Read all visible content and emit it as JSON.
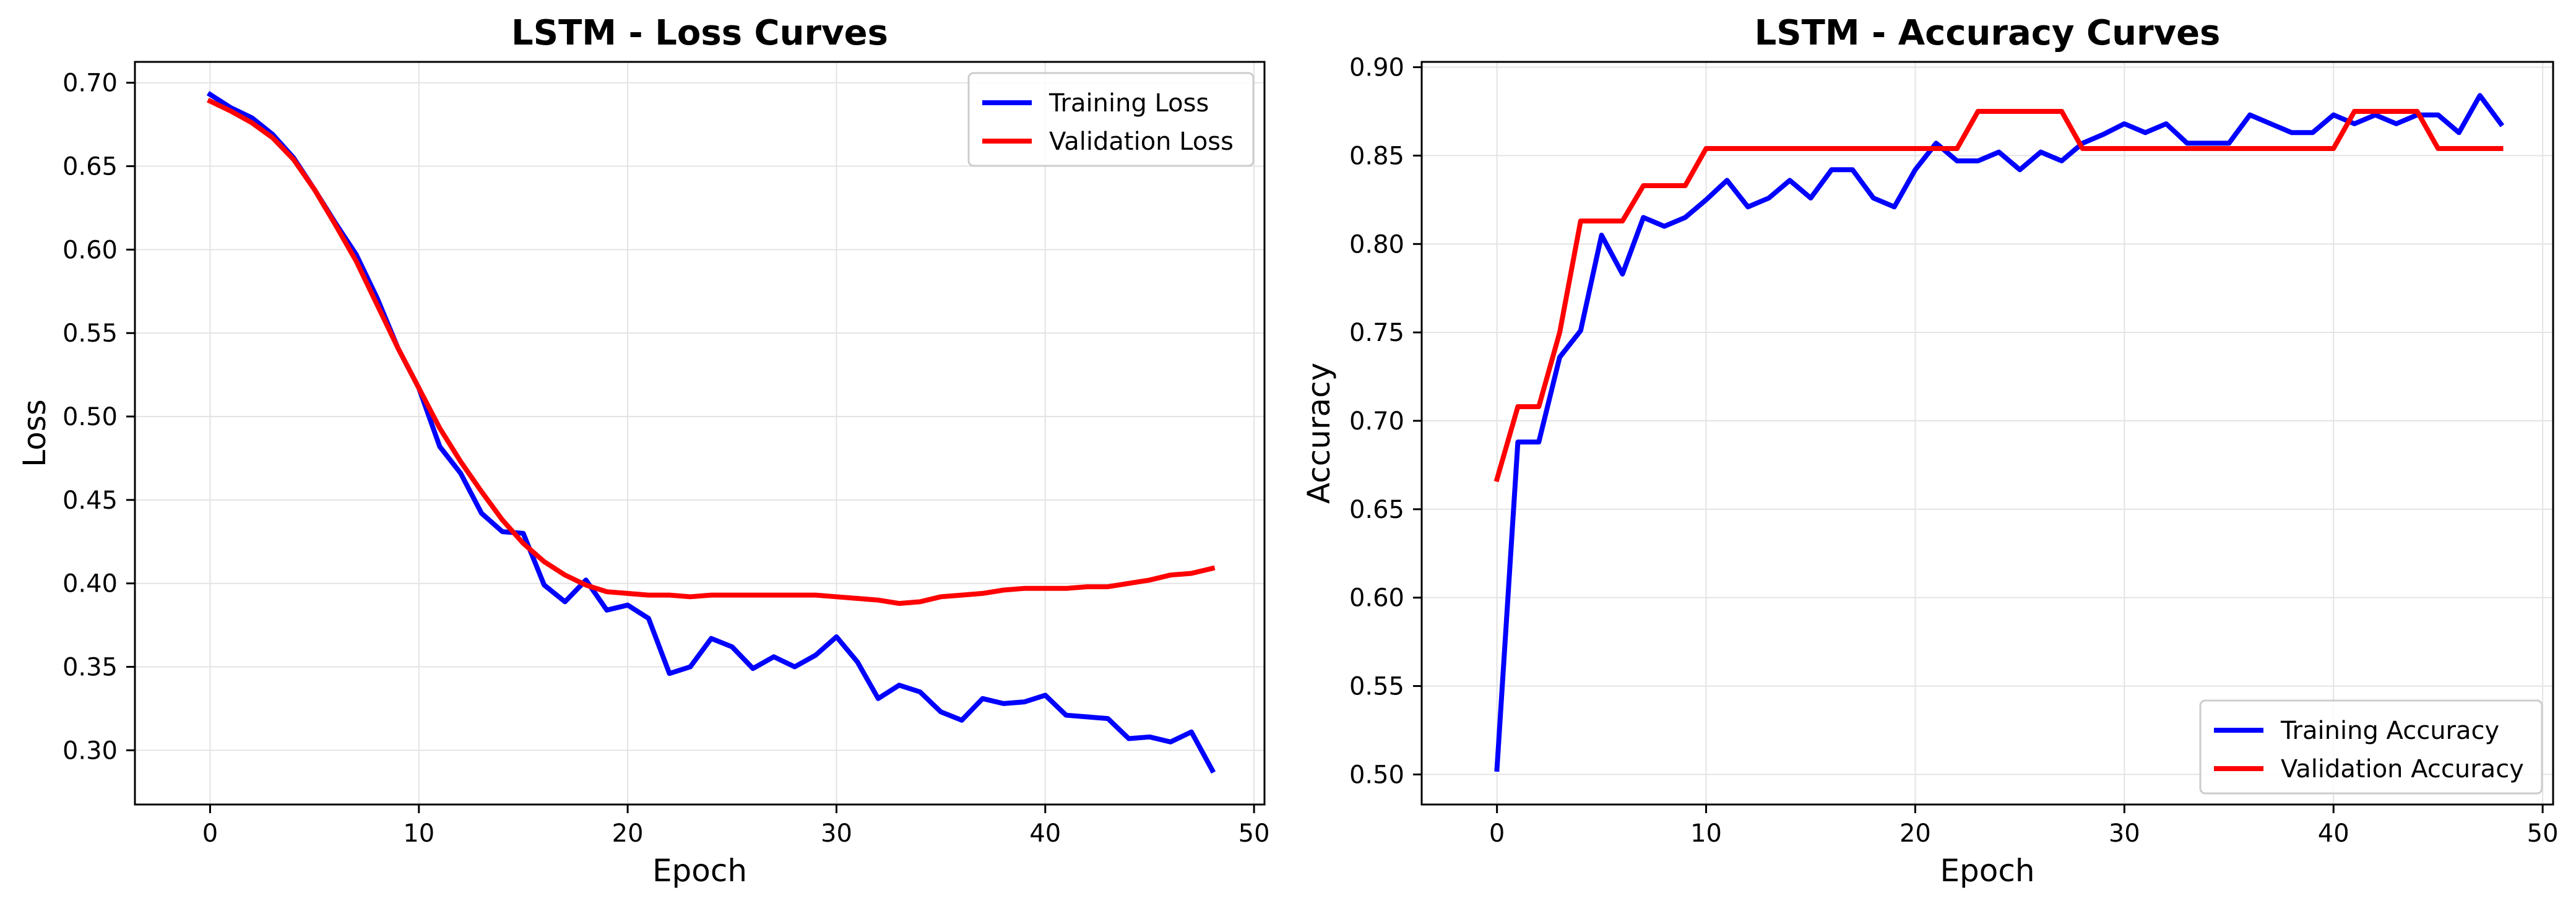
{
  "chart_data": [
    {
      "type": "line",
      "title": "LSTM - Loss Curves",
      "xlabel": "Epoch",
      "ylabel": "Loss",
      "xlim": [
        -3.6,
        50.5
      ],
      "ylim": [
        0.2675,
        0.7125
      ],
      "xticks": [
        0,
        10,
        20,
        30,
        40,
        50
      ],
      "xtick_labels": [
        "0",
        "10",
        "20",
        "30",
        "40",
        "50"
      ],
      "yticks": [
        0.3,
        0.35,
        0.4,
        0.45,
        0.5,
        0.55,
        0.6,
        0.65,
        0.7
      ],
      "ytick_labels": [
        "0.30",
        "0.35",
        "0.40",
        "0.45",
        "0.50",
        "0.55",
        "0.60",
        "0.65",
        "0.70"
      ],
      "grid": true,
      "legend_position": "upper right",
      "x": [
        0,
        1,
        2,
        3,
        4,
        5,
        6,
        7,
        8,
        9,
        10,
        11,
        12,
        13,
        14,
        15,
        16,
        17,
        18,
        19,
        20,
        21,
        22,
        23,
        24,
        25,
        26,
        27,
        28,
        29,
        30,
        31,
        32,
        33,
        34,
        35,
        36,
        37,
        38,
        39,
        40,
        41,
        42,
        43,
        44,
        45,
        46,
        47,
        48
      ],
      "series": [
        {
          "name": "Training Loss",
          "color": "#0000ff",
          "values": [
            0.693,
            0.685,
            0.679,
            0.669,
            0.655,
            0.636,
            0.616,
            0.597,
            0.571,
            0.541,
            0.517,
            0.482,
            0.466,
            0.442,
            0.431,
            0.43,
            0.399,
            0.389,
            0.402,
            0.384,
            0.387,
            0.379,
            0.346,
            0.35,
            0.367,
            0.362,
            0.349,
            0.356,
            0.35,
            0.357,
            0.368,
            0.353,
            0.331,
            0.339,
            0.335,
            0.323,
            0.318,
            0.331,
            0.328,
            0.329,
            0.333,
            0.321,
            0.32,
            0.319,
            0.307,
            0.308,
            0.305,
            0.311,
            0.288
          ]
        },
        {
          "name": "Validation Loss",
          "color": "#ff0000",
          "values": [
            0.689,
            0.683,
            0.676,
            0.667,
            0.654,
            0.636,
            0.615,
            0.593,
            0.567,
            0.541,
            0.517,
            0.493,
            0.473,
            0.455,
            0.438,
            0.424,
            0.413,
            0.405,
            0.399,
            0.395,
            0.394,
            0.393,
            0.393,
            0.392,
            0.393,
            0.393,
            0.393,
            0.393,
            0.393,
            0.393,
            0.392,
            0.391,
            0.39,
            0.388,
            0.389,
            0.392,
            0.393,
            0.394,
            0.396,
            0.397,
            0.397,
            0.397,
            0.398,
            0.398,
            0.4,
            0.402,
            0.405,
            0.406,
            0.409
          ]
        }
      ]
    },
    {
      "type": "line",
      "title": "LSTM - Accuracy Curves",
      "xlabel": "Epoch",
      "ylabel": "Accuracy",
      "xlim": [
        -3.6,
        50.5
      ],
      "ylim": [
        0.483,
        0.903
      ],
      "xticks": [
        0,
        10,
        20,
        30,
        40,
        50
      ],
      "xtick_labels": [
        "0",
        "10",
        "20",
        "30",
        "40",
        "50"
      ],
      "yticks": [
        0.5,
        0.55,
        0.6,
        0.65,
        0.7,
        0.75,
        0.8,
        0.85,
        0.9
      ],
      "ytick_labels": [
        "0.50",
        "0.55",
        "0.60",
        "0.65",
        "0.70",
        "0.75",
        "0.80",
        "0.85",
        "0.90"
      ],
      "grid": true,
      "legend_position": "lower right",
      "x": [
        0,
        1,
        2,
        3,
        4,
        5,
        6,
        7,
        8,
        9,
        10,
        11,
        12,
        13,
        14,
        15,
        16,
        17,
        18,
        19,
        20,
        21,
        22,
        23,
        24,
        25,
        26,
        27,
        28,
        29,
        30,
        31,
        32,
        33,
        34,
        35,
        36,
        37,
        38,
        39,
        40,
        41,
        42,
        43,
        44,
        45,
        46,
        47,
        48
      ],
      "series": [
        {
          "name": "Training Accuracy",
          "color": "#0000ff",
          "values": [
            0.503,
            0.688,
            0.688,
            0.736,
            0.751,
            0.805,
            0.783,
            0.815,
            0.81,
            0.815,
            0.825,
            0.836,
            0.821,
            0.826,
            0.836,
            0.826,
            0.842,
            0.842,
            0.826,
            0.821,
            0.842,
            0.857,
            0.847,
            0.847,
            0.852,
            0.842,
            0.852,
            0.847,
            0.857,
            0.862,
            0.868,
            0.863,
            0.868,
            0.857,
            0.857,
            0.857,
            0.873,
            0.868,
            0.863,
            0.863,
            0.873,
            0.868,
            0.873,
            0.868,
            0.873,
            0.873,
            0.863,
            0.884,
            0.868
          ]
        },
        {
          "name": "Validation Accuracy",
          "color": "#ff0000",
          "values": [
            0.667,
            0.708,
            0.708,
            0.75,
            0.813,
            0.813,
            0.813,
            0.833,
            0.833,
            0.833,
            0.854,
            0.854,
            0.854,
            0.854,
            0.854,
            0.854,
            0.854,
            0.854,
            0.854,
            0.854,
            0.854,
            0.854,
            0.854,
            0.875,
            0.875,
            0.875,
            0.875,
            0.875,
            0.854,
            0.854,
            0.854,
            0.854,
            0.854,
            0.854,
            0.854,
            0.854,
            0.854,
            0.854,
            0.854,
            0.854,
            0.854,
            0.875,
            0.875,
            0.875,
            0.875,
            0.854,
            0.854,
            0.854,
            0.854
          ]
        }
      ]
    }
  ]
}
